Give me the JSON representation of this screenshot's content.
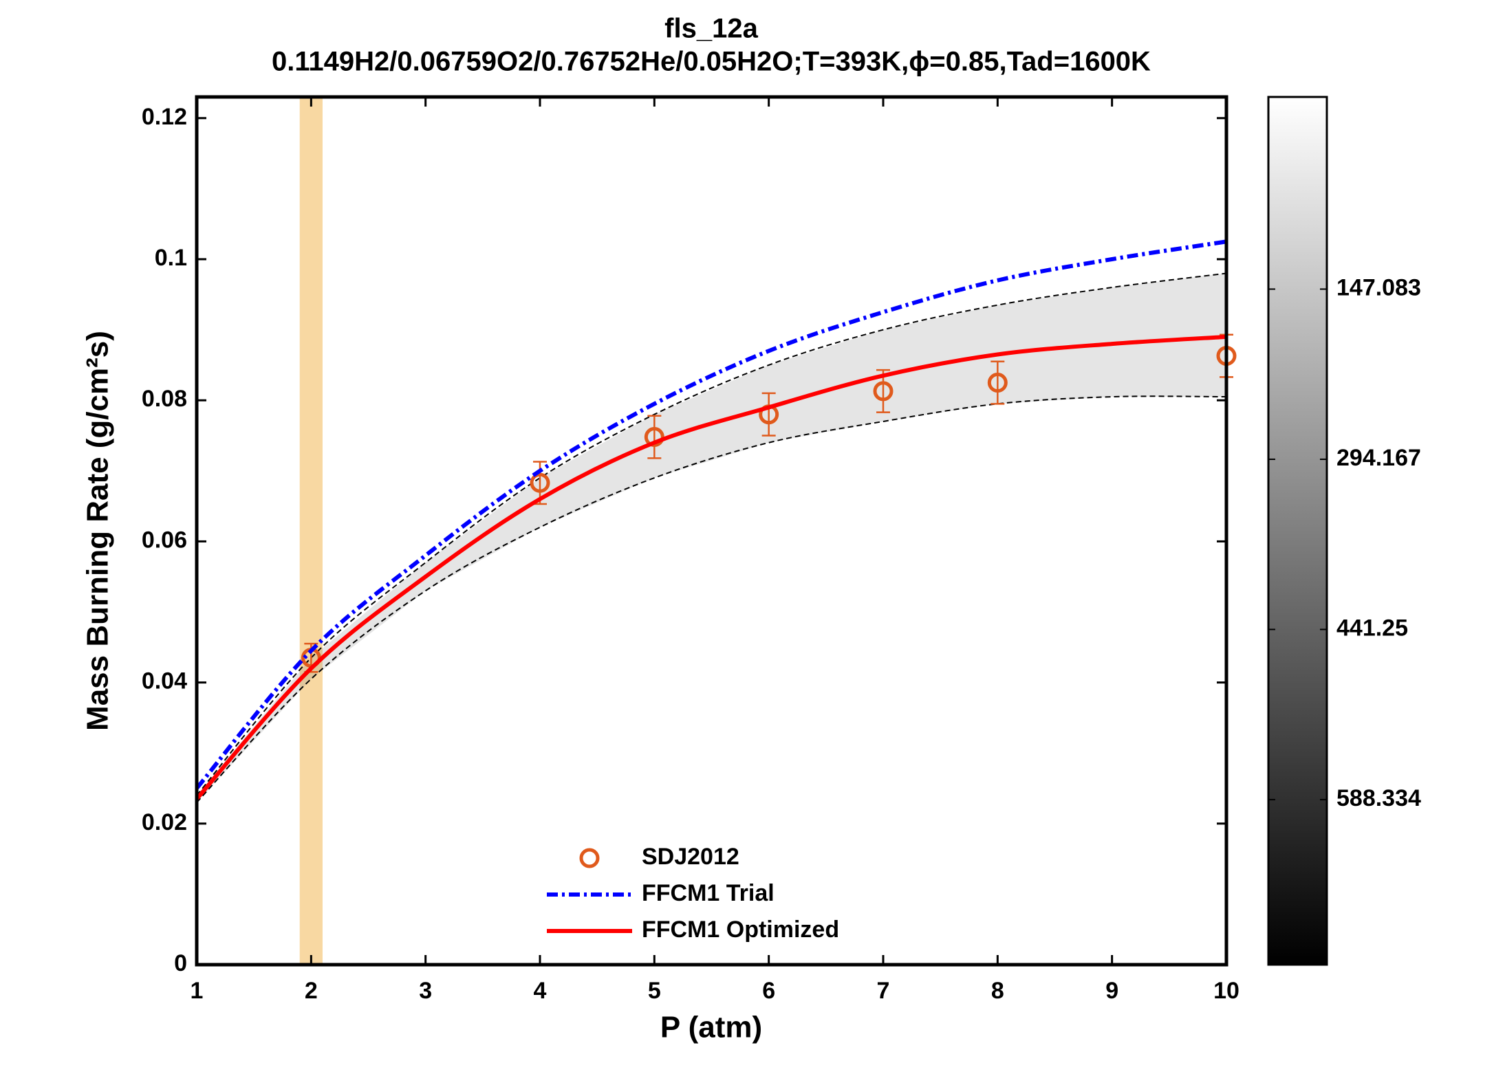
{
  "chart_data": {
    "type": "line",
    "title": "fls_12a",
    "subtitle": "0.1149H2/0.06759O2/0.76752He/0.05H2O;T=393K,ϕ=0.85,Tad=1600K",
    "xlabel": "P (atm)",
    "ylabel": "Mass Burning Rate (g/cm²s)",
    "xlim": [
      1,
      10
    ],
    "ylim": [
      0,
      0.123
    ],
    "xticks": [
      1,
      2,
      3,
      4,
      5,
      6,
      7,
      8,
      9,
      10
    ],
    "yticks": [
      0,
      0.02,
      0.04,
      0.06,
      0.08,
      0.1,
      0.12
    ],
    "legend": "lower center",
    "series": [
      {
        "name": "SDJ2012",
        "type": "scatter",
        "color": "#e05a1c",
        "x": [
          2,
          4,
          5,
          6,
          7,
          8,
          10
        ],
        "values": [
          0.0435,
          0.0683,
          0.0748,
          0.078,
          0.0813,
          0.0825,
          0.0863
        ],
        "errors": [
          0.002,
          0.003,
          0.003,
          0.003,
          0.003,
          0.003,
          0.003
        ]
      },
      {
        "name": "FFCM1 Trial",
        "type": "line",
        "style": "dashdot",
        "color": "#0000ff",
        "x": [
          1,
          2,
          3,
          4,
          5,
          6,
          7,
          8,
          9,
          10
        ],
        "values": [
          0.025,
          0.0445,
          0.058,
          0.07,
          0.0795,
          0.087,
          0.0925,
          0.097,
          0.1,
          0.1025
        ]
      },
      {
        "name": "FFCM1 Optimized",
        "type": "line",
        "style": "solid",
        "color": "#ff0000",
        "x": [
          1,
          2,
          3,
          4,
          5,
          6,
          7,
          8,
          9,
          10
        ],
        "values": [
          0.0235,
          0.042,
          0.055,
          0.066,
          0.074,
          0.079,
          0.0835,
          0.0865,
          0.088,
          0.089
        ]
      }
    ],
    "bounds": [
      {
        "color": "#000000",
        "x": [
          1,
          2,
          3,
          4,
          5,
          6,
          7,
          8,
          9,
          10
        ],
        "values": [
          0.024,
          0.0435,
          0.057,
          0.069,
          0.078,
          0.085,
          0.09,
          0.0935,
          0.096,
          0.098
        ]
      },
      {
        "color": "#000000",
        "x": [
          1,
          2,
          3,
          4,
          5,
          6,
          7,
          8,
          9,
          10
        ],
        "values": [
          0.023,
          0.0405,
          0.053,
          0.062,
          0.069,
          0.074,
          0.077,
          0.0795,
          0.0805,
          0.0805
        ]
      }
    ],
    "highlight": {
      "x": [
        1.9,
        2.1
      ],
      "color": "#f0a830"
    },
    "colorbar": {
      "lim": [
        -19,
        731
      ],
      "ticks": [
        147.083,
        294.167,
        441.25,
        588.334
      ]
    }
  }
}
